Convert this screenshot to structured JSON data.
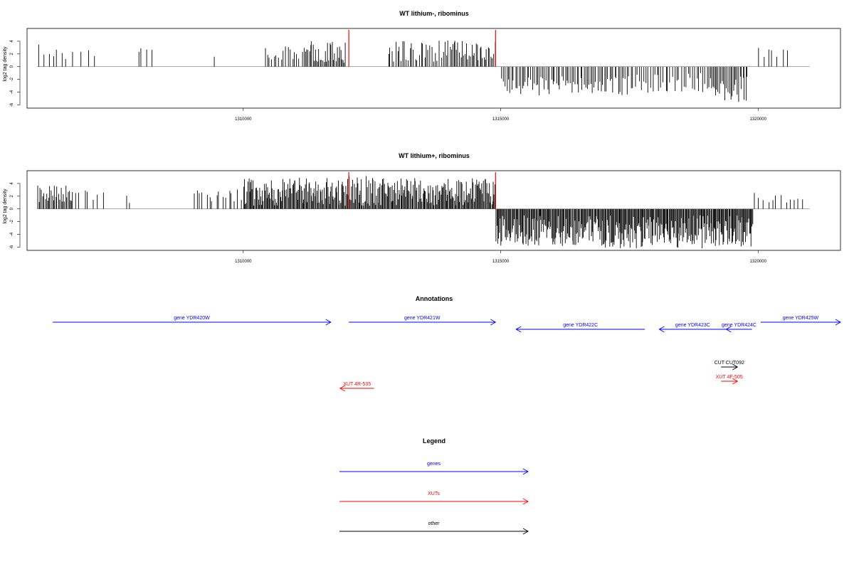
{
  "chart_data": [
    {
      "type": "bar",
      "title": "WT lithium-, ribominus",
      "ylabel": "log2 tag density",
      "xlabel": "",
      "xlim": [
        1305800,
        1321600
      ],
      "ylim": [
        -6.5,
        6
      ],
      "x_ticks": [
        "1310000",
        "1315000",
        "1320000"
      ],
      "y_ticks": [
        "4",
        "2",
        "0",
        "-2",
        "-4",
        "-6"
      ],
      "marker_lines_x": [
        1312050,
        1314900
      ],
      "marker_color": "#ff0000",
      "baseline_range": [
        1306000,
        1321000
      ],
      "segments": [
        {
          "x0": 1306000,
          "x1": 1306700,
          "n": 8,
          "min": 1.0,
          "max": 4.0
        },
        {
          "x0": 1306800,
          "x1": 1307200,
          "n": 3,
          "min": 1.5,
          "max": 3.0
        },
        {
          "x0": 1307900,
          "x1": 1308300,
          "n": 4,
          "min": 1.5,
          "max": 3.3
        },
        {
          "x0": 1309400,
          "x1": 1309500,
          "n": 1,
          "min": 1.5,
          "max": 1.6
        },
        {
          "x0": 1310400,
          "x1": 1311200,
          "n": 18,
          "min": 1.0,
          "max": 3.8
        },
        {
          "x0": 1311200,
          "x1": 1312000,
          "n": 34,
          "min": 0.5,
          "max": 4.0
        },
        {
          "x0": 1312800,
          "x1": 1314000,
          "n": 34,
          "min": 0.8,
          "max": 4.2
        },
        {
          "x0": 1314000,
          "x1": 1314900,
          "n": 34,
          "min": 1.0,
          "max": 4.1
        },
        {
          "x0": 1315000,
          "x1": 1317500,
          "n": 75,
          "min": -4.5,
          "max": -1.5
        },
        {
          "x0": 1317500,
          "x1": 1319000,
          "n": 35,
          "min": -4.2,
          "max": -1.0
        },
        {
          "x0": 1319000,
          "x1": 1319800,
          "n": 30,
          "min": -5.6,
          "max": -1.5
        },
        {
          "x0": 1319950,
          "x1": 1320600,
          "n": 7,
          "min": 1.0,
          "max": 3.2
        }
      ]
    },
    {
      "type": "bar",
      "title": "WT lithium+, ribominus",
      "ylabel": "log2 tag density",
      "xlabel": "",
      "xlim": [
        1305800,
        1321600
      ],
      "ylim": [
        -6.5,
        6
      ],
      "x_ticks": [
        "1310000",
        "1315000",
        "1320000"
      ],
      "y_ticks": [
        "4",
        "2",
        "0",
        "-2",
        "-4",
        "-6"
      ],
      "marker_lines_x": [
        1312050,
        1314900
      ],
      "marker_color": "#ff0000",
      "baseline_range": [
        1306000,
        1321000
      ],
      "segments": [
        {
          "x0": 1306000,
          "x1": 1306700,
          "n": 30,
          "min": 1.0,
          "max": 3.7
        },
        {
          "x0": 1306700,
          "x1": 1307300,
          "n": 7,
          "min": 0.8,
          "max": 3.0
        },
        {
          "x0": 1307700,
          "x1": 1307800,
          "n": 2,
          "min": 0.5,
          "max": 2.7
        },
        {
          "x0": 1309000,
          "x1": 1310000,
          "n": 16,
          "min": 1.0,
          "max": 3.3
        },
        {
          "x0": 1310000,
          "x1": 1312000,
          "n": 120,
          "min": 0.5,
          "max": 5.0
        },
        {
          "x0": 1312000,
          "x1": 1313500,
          "n": 90,
          "min": 0.5,
          "max": 5.2
        },
        {
          "x0": 1313500,
          "x1": 1314900,
          "n": 85,
          "min": 0.5,
          "max": 4.9
        },
        {
          "x0": 1314900,
          "x1": 1317000,
          "n": 130,
          "min": -5.8,
          "max": -1.0
        },
        {
          "x0": 1317000,
          "x1": 1319000,
          "n": 130,
          "min": -6.2,
          "max": -1.0
        },
        {
          "x0": 1319000,
          "x1": 1319900,
          "n": 60,
          "min": -5.9,
          "max": -1.0
        },
        {
          "x0": 1319900,
          "x1": 1320900,
          "n": 12,
          "min": 0.8,
          "max": 3.0
        }
      ]
    }
  ],
  "annotations": {
    "title": "Annotations",
    "features": [
      {
        "label": "gene YDR420W",
        "kind": "gene",
        "color": "#0000ff",
        "dir": "right",
        "x0": 1306300,
        "x1": 1311700,
        "row": 0
      },
      {
        "label": "gene YDR421W",
        "kind": "gene",
        "color": "#0000ff",
        "dir": "right",
        "x0": 1312050,
        "x1": 1314900,
        "row": 0
      },
      {
        "label": "gene YDR422C",
        "kind": "gene",
        "color": "#0000ff",
        "dir": "left",
        "x0": 1315300,
        "x1": 1317800,
        "row": 1
      },
      {
        "label": "gene YDR423C",
        "kind": "gene",
        "color": "#0000ff",
        "dir": "left",
        "x0": 1318080,
        "x1": 1319380,
        "row": 1
      },
      {
        "label": "gene YDR424C",
        "kind": "gene",
        "color": "#0000ff",
        "dir": "left",
        "x0": 1319380,
        "x1": 1319880,
        "row": 1
      },
      {
        "label": "gene YDR425W",
        "kind": "gene",
        "color": "#0000ff",
        "dir": "right",
        "x0": 1320050,
        "x1": 1321600,
        "row": 0
      },
      {
        "label": "CUT CUT092",
        "kind": "other",
        "color": "#000000",
        "dir": "right",
        "x0": 1319280,
        "x1": 1319600,
        "row": 2
      },
      {
        "label": "XUT 4F-505",
        "kind": "XUT",
        "color": "#ff0000",
        "dir": "right",
        "x0": 1319280,
        "x1": 1319600,
        "row": 3
      },
      {
        "label": "XUT 4R-535",
        "kind": "XUT",
        "color": "#ff0000",
        "dir": "left",
        "x0": 1311880,
        "x1": 1312540,
        "row": 4
      }
    ]
  },
  "legend": {
    "title": "Legend",
    "items": [
      {
        "label": "genes",
        "color": "#0000ff"
      },
      {
        "label": "XUTs",
        "color": "#ff0000"
      },
      {
        "label": "other",
        "color": "#000000"
      }
    ]
  }
}
